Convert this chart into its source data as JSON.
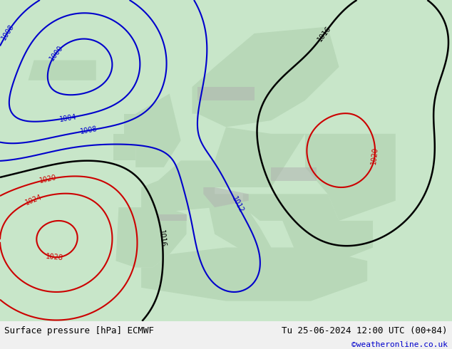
{
  "title_left": "Surface pressure [hPa] ECMWF",
  "title_right": "Tu 25-06-2024 12:00 UTC (00+84)",
  "copyright": "©weatheronline.co.uk",
  "bg_color": "#e8f5e9",
  "land_color": "#d4edda",
  "ocean_color": "#e8f5e9",
  "map_bg": "#c8e6c9",
  "label_color_black": "#000000",
  "label_color_blue": "#0000cc",
  "label_color_red": "#cc0000",
  "footer_bg": "#f0f0f0",
  "footer_text_color": "#000000",
  "copyright_color": "#0000cc",
  "figsize": [
    6.34,
    4.9
  ],
  "dpi": 100
}
